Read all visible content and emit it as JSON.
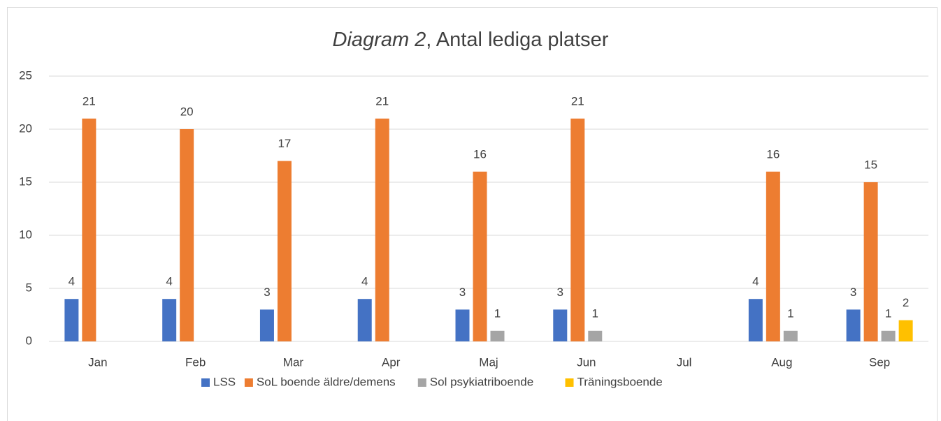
{
  "chart_data": {
    "type": "bar",
    "title": [
      "Diagram 2",
      ", Antal lediga platser"
    ],
    "categories": [
      "Jan",
      "Feb",
      "Mar",
      "Apr",
      "Maj",
      "Jun",
      "Jul",
      "Aug",
      "Sep"
    ],
    "series": [
      {
        "name": "LSS",
        "color": "#4472c4",
        "values": [
          4,
          4,
          3,
          4,
          3,
          3,
          null,
          4,
          3
        ]
      },
      {
        "name": "SoL boende äldre/demens",
        "color": "#ed7d31",
        "values": [
          21,
          20,
          17,
          21,
          16,
          21,
          null,
          16,
          15
        ]
      },
      {
        "name": "Sol psykiatriboende",
        "color": "#a5a5a5",
        "values": [
          null,
          null,
          null,
          null,
          1,
          1,
          null,
          1,
          1
        ]
      },
      {
        "name": "Träningsboende",
        "color": "#ffc000",
        "values": [
          null,
          null,
          null,
          null,
          null,
          null,
          null,
          null,
          2
        ]
      }
    ],
    "ylim": [
      0,
      25
    ],
    "yticks": [
      0,
      5,
      10,
      15,
      20,
      25
    ],
    "grid": true,
    "legend": "bottom"
  }
}
